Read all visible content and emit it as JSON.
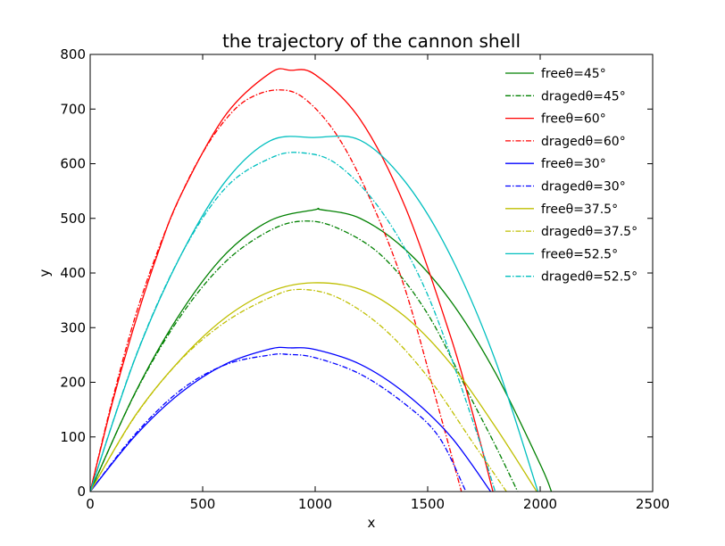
{
  "chart_data": {
    "type": "line",
    "title": "the trajectory of the cannon shell",
    "xlabel": "x",
    "ylabel": "y",
    "xlim": [
      0,
      2500
    ],
    "ylim": [
      0,
      800
    ],
    "xticks": [
      0,
      500,
      1000,
      1500,
      2000,
      2500
    ],
    "yticks": [
      0,
      100,
      200,
      300,
      400,
      500,
      600,
      700,
      800
    ],
    "grid": false,
    "legend_position": "top-right",
    "series": [
      {
        "name": "freeθ=45°",
        "color": "#008000",
        "style": "solid",
        "x": [
          0,
          200,
          400,
          600,
          800,
          1000,
          1025,
          1200,
          1400,
          1600,
          1800,
          2000,
          2050
        ],
        "y": [
          0,
          181,
          326,
          434,
          496,
          516,
          516,
          500,
          443,
          350,
          218,
          50,
          0
        ]
      },
      {
        "name": "dragedθ=45°",
        "color": "#008000",
        "style": "dashdot",
        "x": [
          0,
          200,
          400,
          600,
          800,
          950,
          1100,
          1300,
          1500,
          1700,
          1800,
          1900
        ],
        "y": [
          0,
          180,
          320,
          420,
          478,
          495,
          482,
          430,
          325,
          165,
          85,
          0
        ]
      },
      {
        "name": "freeθ=60°",
        "color": "#ff0000",
        "style": "solid",
        "x": [
          0,
          100,
          200,
          300,
          400,
          600,
          800,
          890,
          1000,
          1200,
          1400,
          1600,
          1700,
          1790
        ],
        "y": [
          0,
          165,
          309,
          435,
          540,
          688,
          766,
          771,
          763,
          681,
          521,
          286,
          143,
          0
        ]
      },
      {
        "name": "dragedθ=60°",
        "color": "#ff0000",
        "style": "dashdot",
        "x": [
          0,
          100,
          200,
          300,
          400,
          500,
          600,
          700,
          830,
          950,
          1100,
          1250,
          1400,
          1550,
          1650
        ],
        "y": [
          0,
          170,
          320,
          440,
          540,
          620,
          680,
          718,
          735,
          720,
          650,
          530,
          370,
          150,
          0
        ]
      },
      {
        "name": "freeθ=30°",
        "color": "#0000ff",
        "style": "solid",
        "x": [
          0,
          200,
          400,
          600,
          800,
          890,
          1000,
          1200,
          1400,
          1600,
          1780
        ],
        "y": [
          0,
          102,
          180,
          233,
          261,
          263,
          260,
          233,
          180,
          102,
          0
        ]
      },
      {
        "name": "dragedθ=30°",
        "color": "#0000ff",
        "style": "dashdot",
        "x": [
          0,
          200,
          400,
          600,
          800,
          880,
          1000,
          1200,
          1400,
          1550,
          1670
        ],
        "y": [
          0,
          105,
          185,
          232,
          250,
          251,
          245,
          215,
          160,
          100,
          0
        ]
      },
      {
        "name": "freeθ=37.5°",
        "color": "#bfbf00",
        "style": "solid",
        "x": [
          0,
          200,
          400,
          600,
          800,
          990,
          1200,
          1400,
          1600,
          1800,
          1985
        ],
        "y": [
          0,
          139,
          241,
          318,
          366,
          382,
          370,
          320,
          235,
          119,
          0
        ]
      },
      {
        "name": "dragedθ=37.5°",
        "color": "#bfbf00",
        "style": "dashdot",
        "x": [
          0,
          200,
          400,
          600,
          800,
          930,
          1100,
          1300,
          1500,
          1700,
          1850
        ],
        "y": [
          0,
          138,
          240,
          310,
          355,
          370,
          355,
          300,
          210,
          90,
          0
        ]
      },
      {
        "name": "freeθ=52.5°",
        "color": "#00bfbf",
        "style": "solid",
        "x": [
          0,
          200,
          400,
          600,
          800,
          995,
          1200,
          1400,
          1600,
          1800,
          1990
        ],
        "y": [
          0,
          244,
          430,
          567,
          642,
          648,
          643,
          567,
          433,
          241,
          0
        ]
      },
      {
        "name": "dragedθ=52.5°",
        "color": "#00bfbf",
        "style": "dashdot",
        "x": [
          0,
          200,
          400,
          600,
          800,
          940,
          1100,
          1300,
          1500,
          1700,
          1800
        ],
        "y": [
          0,
          245,
          430,
          555,
          610,
          620,
          598,
          510,
          360,
          130,
          0
        ]
      }
    ]
  }
}
